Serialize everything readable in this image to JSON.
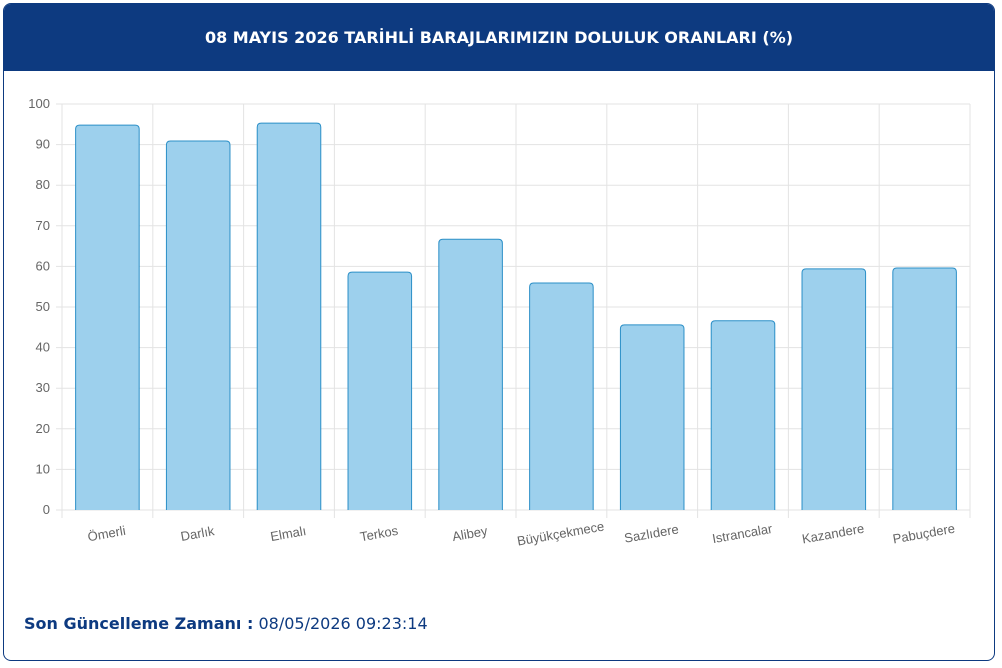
{
  "chart_data": {
    "type": "bar",
    "title": "08 MAYIS 2026 TARİHLİ BARAJLARIMIZIN DOLULUK ORANLARI (%)",
    "categories": [
      "Ömerli",
      "Darlık",
      "Elmalı",
      "Terkos",
      "Alibey",
      "Büyükçekmece",
      "Sazlıdere",
      "Istrancalar",
      "Kazandere",
      "Pabuçdere"
    ],
    "values": [
      94.8,
      90.9,
      95.3,
      58.6,
      66.7,
      55.9,
      45.6,
      46.6,
      59.4,
      59.6
    ],
    "color": "#9dd0ed",
    "border_color": "#2b8fc7",
    "ylim": [
      0,
      100
    ],
    "yticks": [
      0,
      10,
      20,
      30,
      40,
      50,
      60,
      70,
      80,
      90,
      100
    ],
    "grid": true
  },
  "footer": {
    "label": "Son Güncelleme Zamanı :",
    "time": "08/05/2026 09:23:14"
  }
}
